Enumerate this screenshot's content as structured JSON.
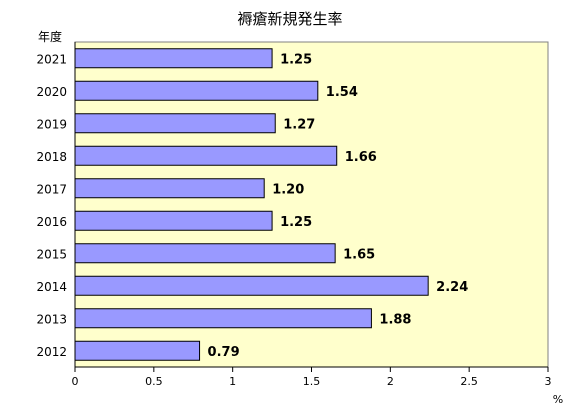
{
  "chart_data": {
    "type": "bar",
    "orientation": "horizontal",
    "title": "褥瘡新規発生率",
    "category_axis_label": "年度",
    "unit_label": "%",
    "categories": [
      "2021",
      "2020",
      "2019",
      "2018",
      "2017",
      "2016",
      "2015",
      "2014",
      "2013",
      "2012"
    ],
    "values": [
      1.25,
      1.54,
      1.27,
      1.66,
      1.2,
      1.25,
      1.65,
      2.24,
      1.88,
      0.79
    ],
    "value_labels": [
      "1.25",
      "1.54",
      "1.27",
      "1.66",
      "1.20",
      "1.25",
      "1.65",
      "2.24",
      "1.88",
      "0.79"
    ],
    "xlim": [
      0,
      3
    ],
    "xticks": [
      0,
      0.5,
      1,
      1.5,
      2,
      2.5,
      3
    ],
    "xtick_labels": [
      "0",
      "0.5",
      "1",
      "1.5",
      "2",
      "2.5",
      "3"
    ],
    "grid": false,
    "legend": "none",
    "colors": {
      "plot_background": "#FFFFCC",
      "bar_fill": "#9999FF",
      "bar_border": "#000000",
      "axis": "#000000"
    }
  }
}
